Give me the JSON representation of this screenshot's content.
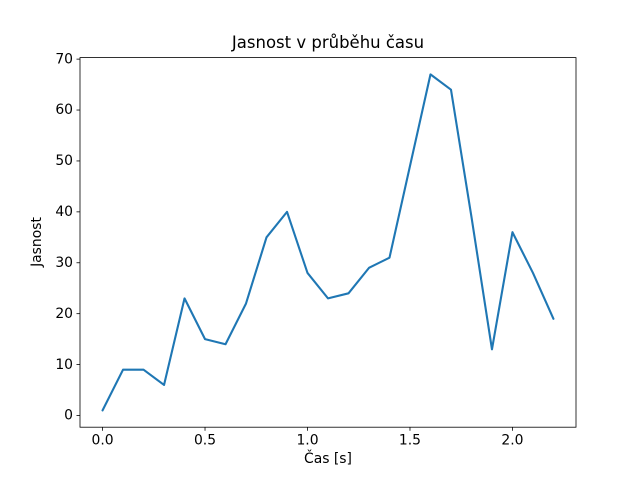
{
  "figure": {
    "background_color": "#ffffff",
    "text_color": "#000000",
    "spine_color": "#000000"
  },
  "chart_data": {
    "type": "line",
    "title": "Jasnost v průběhu času",
    "xlabel": "Čas [s]",
    "ylabel": "Jasnost",
    "x": [
      0.0,
      0.1,
      0.2,
      0.3,
      0.4,
      0.5,
      0.6,
      0.7,
      0.8,
      0.9,
      1.0,
      1.1,
      1.2,
      1.3,
      1.4,
      1.5,
      1.6,
      1.7,
      1.8,
      1.9,
      2.0,
      2.1,
      2.2
    ],
    "y": [
      1,
      9,
      9,
      6,
      23,
      15,
      14,
      22,
      35,
      40,
      28,
      23,
      24,
      29,
      31,
      49,
      67,
      64,
      39,
      13,
      36,
      28,
      19
    ],
    "series_name": "Jasnost",
    "line_color": "#1f77b4",
    "xticks": [
      0.0,
      0.5,
      1.0,
      1.5,
      2.0
    ],
    "xtick_labels": [
      "0.0",
      "0.5",
      "1.0",
      "1.5",
      "2.0"
    ],
    "yticks": [
      0,
      10,
      20,
      30,
      40,
      50,
      60,
      70
    ],
    "ytick_labels": [
      "0",
      "10",
      "20",
      "30",
      "40",
      "50",
      "60",
      "70"
    ],
    "xlim": [
      -0.11,
      2.31
    ],
    "ylim": [
      -2.3,
      70.3
    ],
    "grid": false,
    "legend": null
  }
}
